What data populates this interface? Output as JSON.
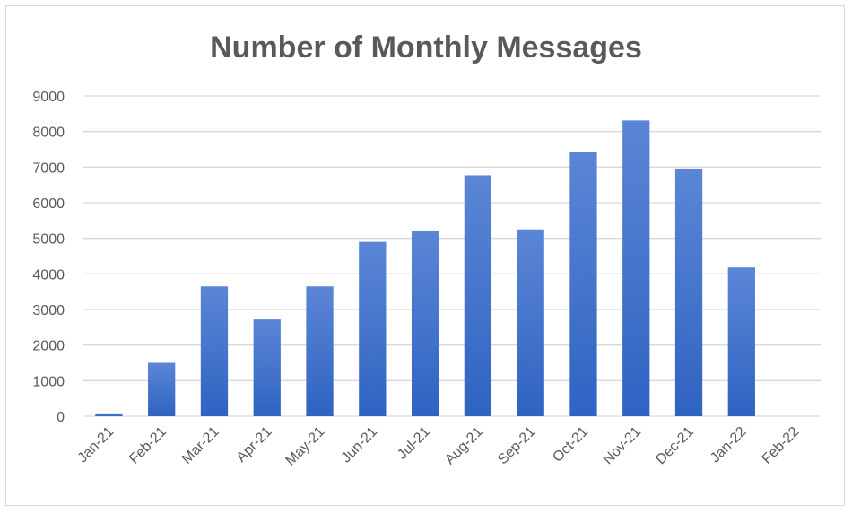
{
  "chart_data": {
    "type": "bar",
    "title": "Number of Monthly Messages",
    "xlabel": "",
    "ylabel": "",
    "categories": [
      "Jan-21",
      "Feb-21",
      "Mar-21",
      "Apr-21",
      "May-21",
      "Jun-21",
      "Jul-21",
      "Aug-21",
      "Sep-21",
      "Oct-21",
      "Nov-21",
      "Dec-21",
      "Jan-22",
      "Feb-22"
    ],
    "values": [
      80,
      1500,
      3650,
      2720,
      3650,
      4900,
      5220,
      6770,
      5250,
      7430,
      8310,
      6960,
      4180,
      0
    ],
    "ylim": [
      0,
      9000
    ],
    "yticks": [
      0,
      1000,
      2000,
      3000,
      4000,
      5000,
      6000,
      7000,
      8000,
      9000
    ],
    "grid": true,
    "legend": "none",
    "bar_color_top": "#5b86d6",
    "bar_color_bottom": "#2f63c2",
    "gridline_color": "#d9d9d9",
    "text_color": "#595959"
  }
}
